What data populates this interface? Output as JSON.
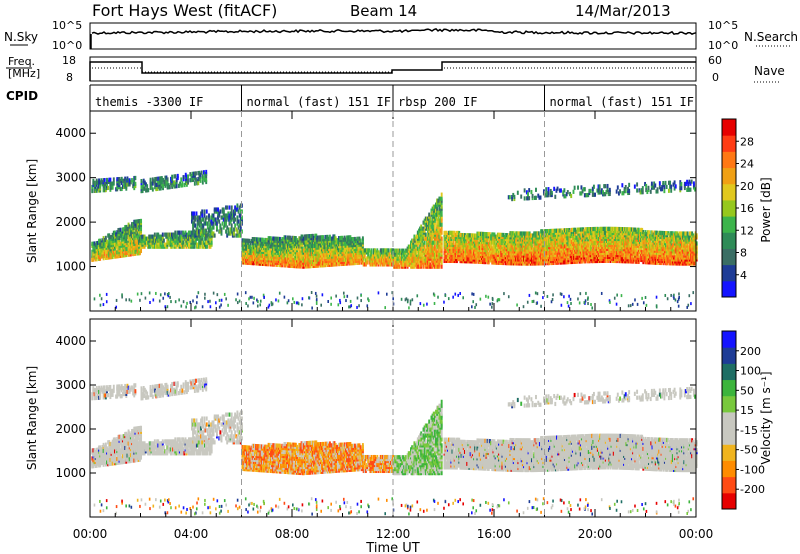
{
  "header": {
    "station": "Fort Hays West (fitACF)",
    "beam": "Beam 14",
    "date": "14/Mar/2013"
  },
  "small_panels": {
    "nsky_label": "N.Sky",
    "nsearch_label": "N.Search",
    "freq_label_line1": "Freq.",
    "freq_label_line2": "[MHz]",
    "nave_label": "Nave",
    "cpid_label": "CPID",
    "noise_ticks_left": [
      "10^5",
      "10^0"
    ],
    "noise_ticks_right": [
      "10^5",
      "10^0"
    ],
    "freq_ticks": [
      "18",
      "8"
    ],
    "nave_ticks": [
      "60",
      "0"
    ]
  },
  "cpid_segments": [
    {
      "start": 0.0,
      "end": 6.0,
      "label": "themis -3300 IF"
    },
    {
      "start": 6.0,
      "end": 12.0,
      "label": "normal (fast) 151 IF"
    },
    {
      "start": 12.0,
      "end": 18.0,
      "label": "rbsp 200 IF"
    },
    {
      "start": 18.0,
      "end": 24.0,
      "label": "normal (fast) 151 IF"
    }
  ],
  "chart_data": [
    {
      "type": "heatmap",
      "title": "",
      "xlabel": "Time UT",
      "ylabel": "Slant Range [km]",
      "xlim": [
        0,
        24
      ],
      "ylim": [
        0,
        4500
      ],
      "x_tick_labels": [
        "00:00",
        "04:00",
        "08:00",
        "12:00",
        "16:00",
        "20:00",
        "00:00"
      ],
      "x_tick_values": [
        0,
        4,
        8,
        12,
        16,
        20,
        24
      ],
      "y_tick_values": [
        1000,
        2000,
        3000,
        4000
      ],
      "colorbar": {
        "label": "Power [dB]",
        "tick_labels": [
          "28",
          "24",
          "20",
          "16",
          "12",
          "8",
          "4"
        ],
        "range": [
          0,
          32
        ],
        "colors": [
          "#1414ff",
          "#1e3c96",
          "#3a6e64",
          "#2e8b57",
          "#3cb44b",
          "#96c81e",
          "#e1c81e",
          "#f0a014",
          "#ff7814",
          "#ff3c14",
          "#e60000"
        ]
      },
      "scatter_regions": [
        {
          "t0": 0.1,
          "t1": 1.5,
          "r0": 1200,
          "r1": 1700,
          "dominant": "green-yellow"
        },
        {
          "t0": 6.0,
          "t1": 11.0,
          "r0": 1000,
          "r1": 1700,
          "dominant": "orange"
        },
        {
          "t0": 14.0,
          "t1": 24.0,
          "r0": 1100,
          "r1": 1800,
          "dominant": "red-orange"
        }
      ]
    },
    {
      "type": "heatmap",
      "title": "",
      "xlabel": "Time UT",
      "ylabel": "Slant Range [km]",
      "xlim": [
        0,
        24
      ],
      "ylim": [
        0,
        4500
      ],
      "x_tick_labels": [
        "00:00",
        "04:00",
        "08:00",
        "12:00",
        "16:00",
        "20:00",
        "00:00"
      ],
      "x_tick_values": [
        0,
        4,
        8,
        12,
        16,
        20,
        24
      ],
      "y_tick_values": [
        1000,
        2000,
        3000,
        4000
      ],
      "colorbar": {
        "label": "Velocity [m s⁻¹]",
        "tick_labels": [
          "200",
          "100",
          "50",
          "15",
          "-15",
          "-50",
          "-100",
          "-200"
        ],
        "range": [
          -250,
          250
        ],
        "colors": [
          "#e60000",
          "#ff4b14",
          "#ff8c00",
          "#f0b41e",
          "#c8c8c0",
          "#c8c8c0",
          "#78c83c",
          "#3cb43c",
          "#1e6e64",
          "#1e3c96",
          "#1414ff"
        ]
      }
    }
  ]
}
